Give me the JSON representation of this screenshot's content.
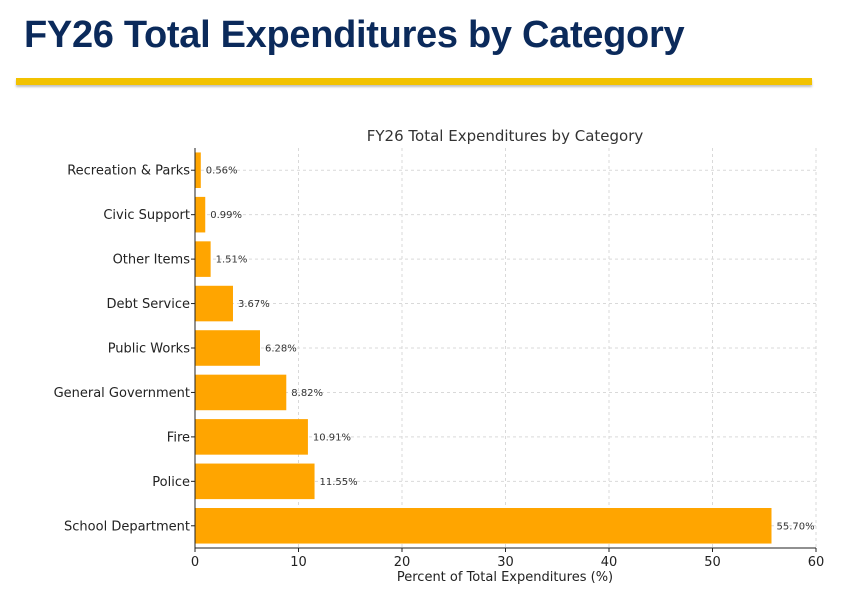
{
  "slide": {
    "title": "FY26 Total Expenditures by Category",
    "title_color": "#0b2a5b",
    "rule_color": "#f2c200"
  },
  "chart_data": {
    "type": "bar",
    "orientation": "horizontal",
    "title": "FY26 Total Expenditures by Category",
    "xlabel": "Percent of Total Expenditures (%)",
    "ylabel": "",
    "categories": [
      "School Department",
      "Police",
      "Fire",
      "General Government",
      "Public Works",
      "Debt Service",
      "Other Items",
      "Civic Support",
      "Recreation & Parks"
    ],
    "values": [
      55.7,
      11.55,
      10.91,
      8.82,
      6.28,
      3.67,
      1.51,
      0.99,
      0.56
    ],
    "value_labels": [
      "55.70%",
      "11.55%",
      "10.91%",
      "8.82%",
      "6.28%",
      "3.67%",
      "1.51%",
      "0.99%",
      "0.56%"
    ],
    "xlim": [
      0,
      60
    ],
    "xticks": [
      0,
      10,
      20,
      30,
      40,
      50,
      60
    ],
    "grid": true,
    "bar_color": "#ffa500"
  }
}
